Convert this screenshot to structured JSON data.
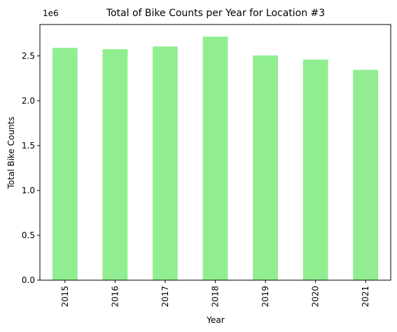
{
  "chart_data": {
    "type": "bar",
    "title": "Total of Bike Counts per Year for Location #3",
    "xlabel": "Year",
    "ylabel": "Total Bike Counts",
    "y_multiplier_label": "1e6",
    "categories": [
      "2015",
      "2016",
      "2017",
      "2018",
      "2019",
      "2020",
      "2021"
    ],
    "values": [
      2590000,
      2575000,
      2605000,
      2715000,
      2505000,
      2460000,
      2345000
    ],
    "ylim": [
      0,
      2850000
    ],
    "yticks": [
      0,
      500000,
      1000000,
      1500000,
      2000000,
      2500000
    ],
    "ytick_labels": [
      "0.0",
      "0.5",
      "1.0",
      "1.5",
      "2.0",
      "2.5"
    ],
    "bar_color": "#90ee90",
    "grid": false,
    "legend": "none"
  }
}
